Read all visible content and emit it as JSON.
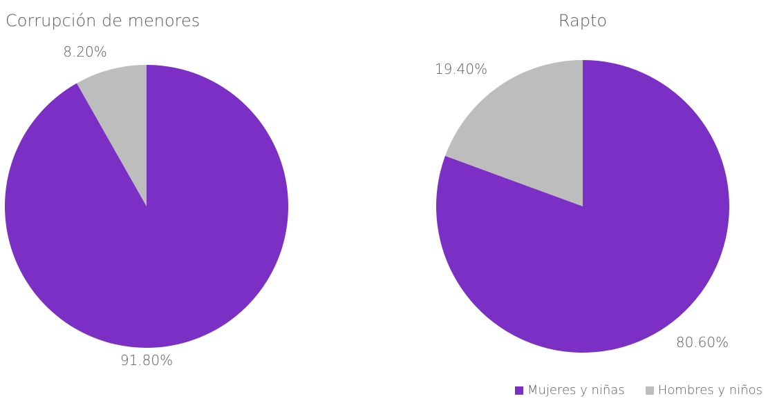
{
  "chart_data": [
    {
      "type": "pie",
      "title": "Corrupción de menores",
      "categories": [
        "Mujeres y niñas",
        "Hombres y niños"
      ],
      "values": [
        91.8,
        8.2
      ],
      "labels": [
        "91.80%",
        "8.20%"
      ],
      "colors": [
        "#7B2FC4",
        "#BDBDBD"
      ],
      "start_angle_degrees": 0,
      "direction": "clockwise"
    },
    {
      "type": "pie",
      "title": "Rapto",
      "categories": [
        "Mujeres y niñas",
        "Hombres y niños"
      ],
      "values": [
        80.6,
        19.4
      ],
      "labels": [
        "80.60%",
        "19.40%"
      ],
      "colors": [
        "#7B2FC4",
        "#BDBDBD"
      ],
      "start_angle_degrees": 0,
      "direction": "clockwise"
    }
  ],
  "legend": {
    "placement": "bottom-right",
    "items": [
      {
        "label": "Mujeres y niñas",
        "color": "#7B2FC4"
      },
      {
        "label": "Hombres y niños",
        "color": "#BDBDBD"
      }
    ]
  }
}
